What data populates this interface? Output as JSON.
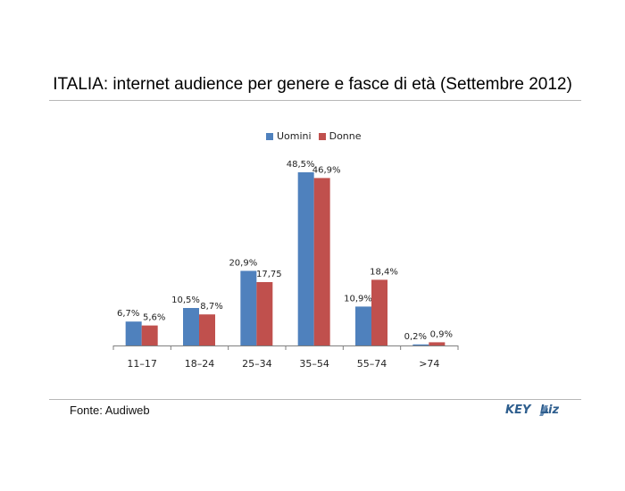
{
  "page": {
    "title": "ITALIA: internet audience per genere e fasce di età (Settembre 2012)",
    "source": "Fonte: Audiweb",
    "logo_text": "KEY4biz"
  },
  "chart_data": {
    "type": "bar",
    "categories": [
      "11–17",
      "18–24",
      "25–34",
      "35–54",
      "55–74",
      ">74"
    ],
    "series": [
      {
        "name": "Uomini",
        "color": "#4F81BD",
        "values": [
          6.7,
          10.5,
          20.9,
          48.5,
          10.9,
          0.2
        ],
        "labels": [
          "6,7%",
          "10,5%",
          "20,9%",
          "48,5%",
          "10,9%",
          "0,2%"
        ]
      },
      {
        "name": "Donne",
        "color": "#C0504D",
        "values": [
          5.6,
          8.7,
          17.75,
          46.9,
          18.4,
          0.9
        ],
        "labels": [
          "5,6%",
          "8,7%",
          "17,75",
          "46,9%",
          "18,4%",
          "0,9%"
        ]
      }
    ],
    "ylim": [
      0,
      50
    ],
    "grid": false,
    "legend": "top-center"
  }
}
